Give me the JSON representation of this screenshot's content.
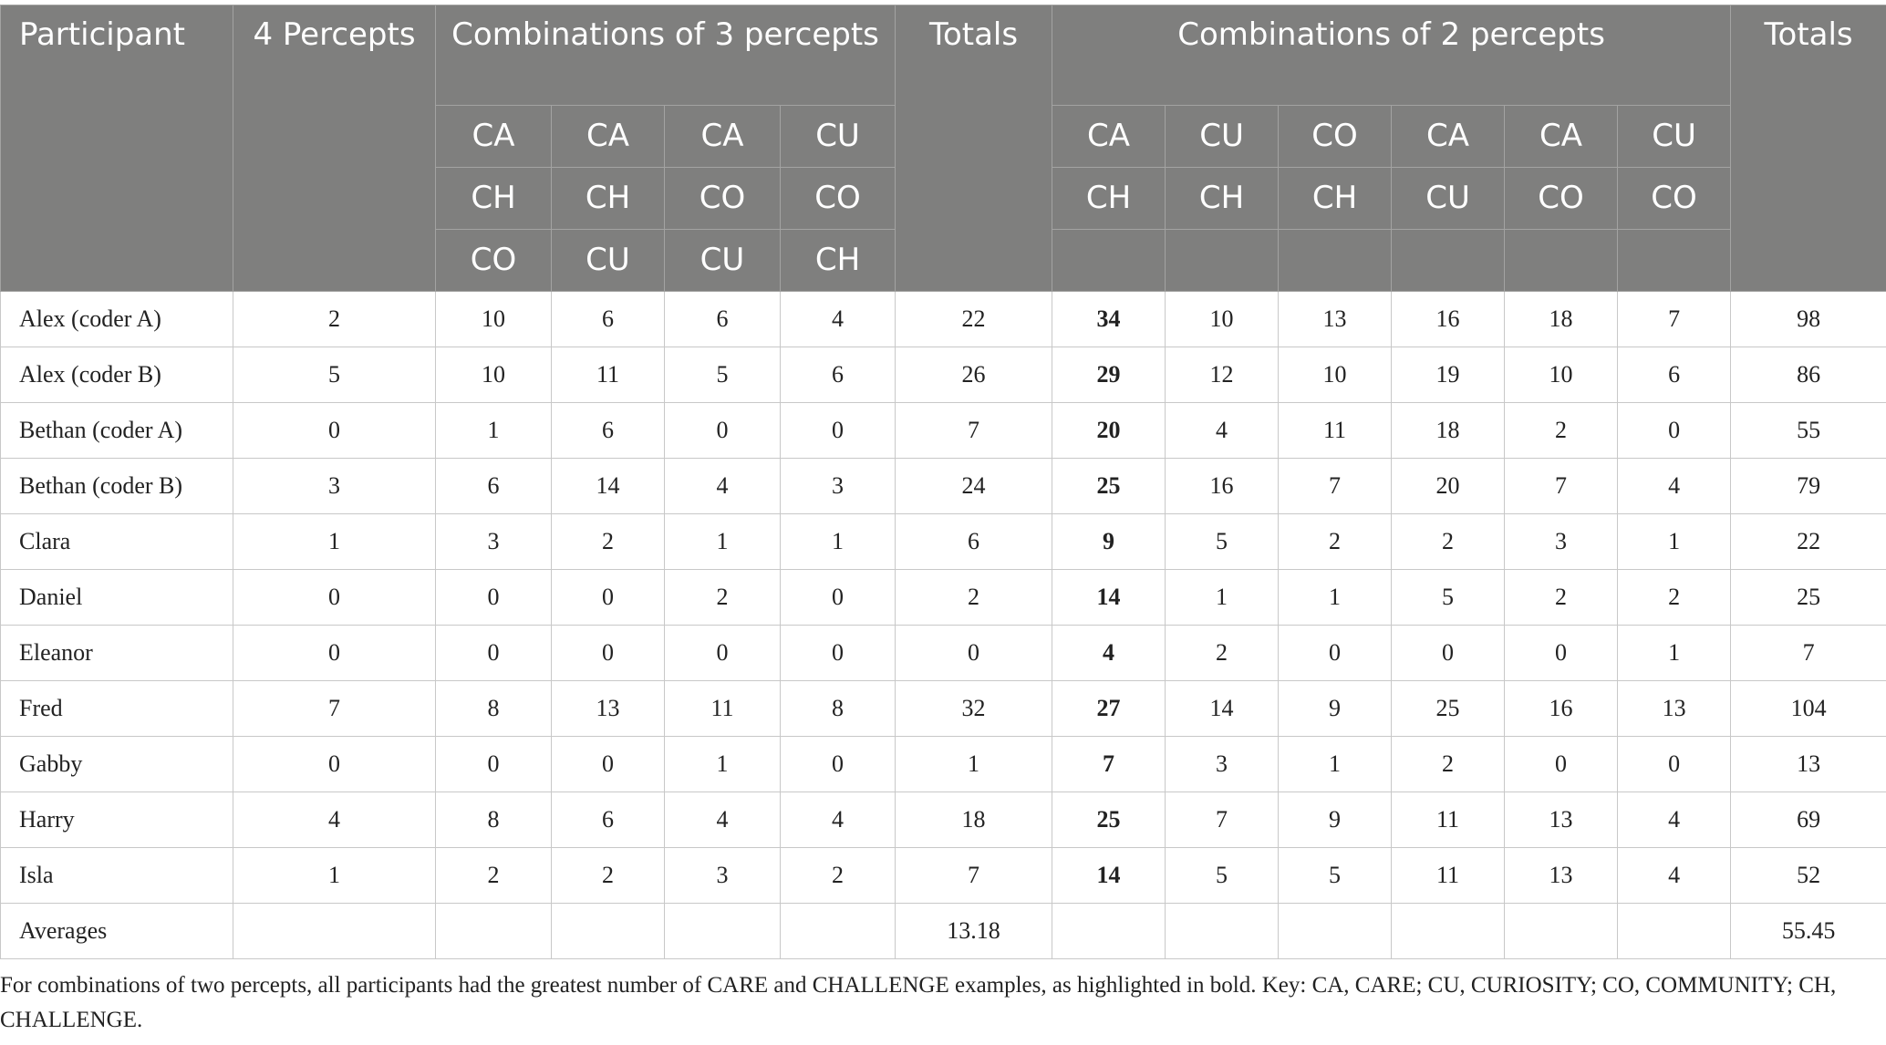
{
  "table": {
    "header": {
      "participant": "Participant",
      "four_percepts": "4 Percepts",
      "combinations_3": "Combinations of 3 percepts",
      "totals_3": "Totals",
      "combinations_2": "Combinations of 2 percepts",
      "totals_2": "Totals",
      "combinations_3_columns": [
        [
          "CA",
          "CH",
          "CO"
        ],
        [
          "CA",
          "CH",
          "CU"
        ],
        [
          "CA",
          "CO",
          "CU"
        ],
        [
          "CU",
          "CO",
          "CH"
        ]
      ],
      "combinations_2_columns": [
        [
          "CA",
          "CH"
        ],
        [
          "CU",
          "CH"
        ],
        [
          "CO",
          "CH"
        ],
        [
          "CA",
          "CU"
        ],
        [
          "CA",
          "CO"
        ],
        [
          "CU",
          "CO"
        ]
      ]
    },
    "rows": [
      [
        "Alex (coder A)",
        2,
        10,
        6,
        6,
        4,
        22,
        34,
        10,
        13,
        16,
        18,
        7,
        98
      ],
      [
        "Alex (coder B)",
        5,
        10,
        11,
        5,
        6,
        26,
        29,
        12,
        10,
        19,
        10,
        6,
        86
      ],
      [
        "Bethan (coder A)",
        0,
        1,
        6,
        0,
        0,
        7,
        20,
        4,
        11,
        18,
        2,
        0,
        55
      ],
      [
        "Bethan (coder B)",
        3,
        6,
        14,
        4,
        3,
        24,
        25,
        16,
        7,
        20,
        7,
        4,
        79
      ],
      [
        "Clara",
        1,
        3,
        2,
        1,
        1,
        6,
        9,
        5,
        2,
        2,
        3,
        1,
        22
      ],
      [
        "Daniel",
        0,
        0,
        0,
        2,
        0,
        2,
        14,
        1,
        1,
        5,
        2,
        2,
        25
      ],
      [
        "Eleanor",
        0,
        0,
        0,
        0,
        0,
        0,
        4,
        2,
        0,
        0,
        0,
        1,
        7
      ],
      [
        "Fred",
        7,
        8,
        13,
        11,
        8,
        32,
        27,
        14,
        9,
        25,
        16,
        13,
        104
      ],
      [
        "Gabby",
        0,
        0,
        0,
        1,
        0,
        1,
        7,
        3,
        1,
        2,
        0,
        0,
        13
      ],
      [
        "Harry",
        4,
        8,
        6,
        4,
        4,
        18,
        25,
        7,
        9,
        11,
        13,
        4,
        69
      ],
      [
        "Isla",
        1,
        2,
        2,
        3,
        2,
        7,
        14,
        5,
        5,
        11,
        13,
        4,
        52
      ]
    ],
    "averages": {
      "label": "Averages",
      "totals_3": 13.18,
      "totals_2": 55.45
    },
    "bold_column": 7
  },
  "footnote": "For combinations of two percepts, all participants had the greatest number of CARE and CHALLENGE examples, as highlighted in bold. Key: CA, CARE; CU, CURIOSITY; CO, COMMUNITY; CH, CHALLENGE."
}
